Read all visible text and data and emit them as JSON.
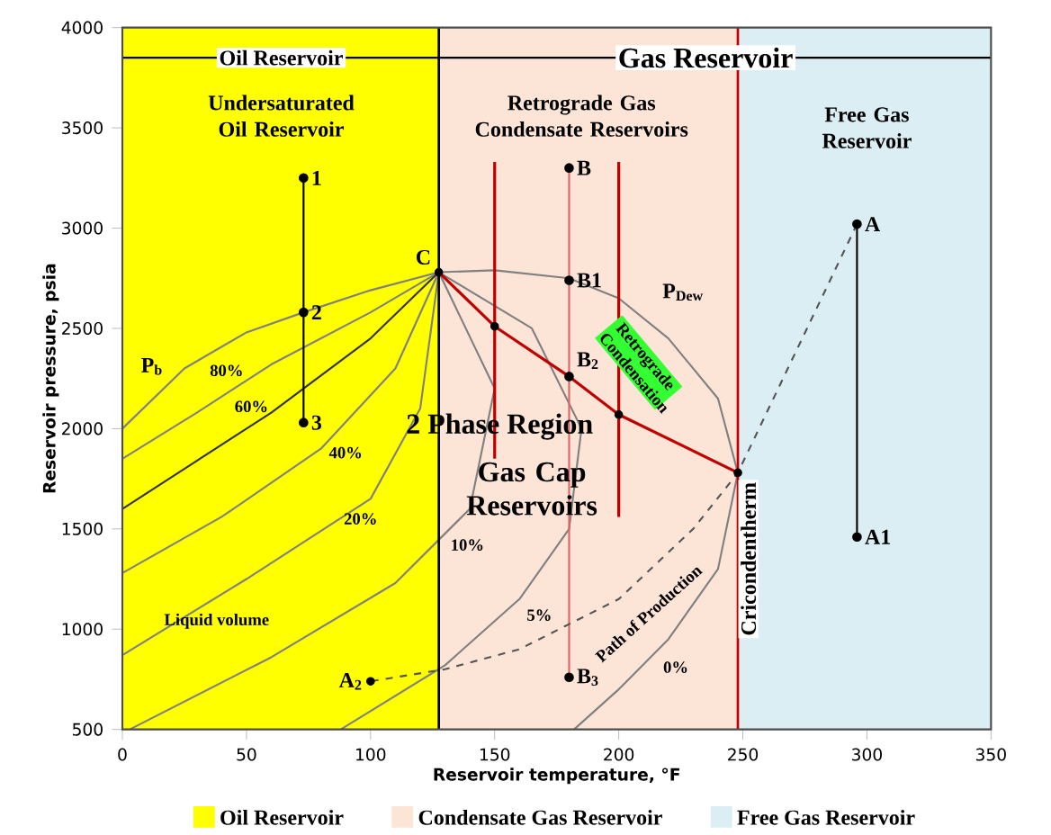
{
  "chart_data": {
    "type": "line",
    "xlabel": "Reservoir temperature, °F",
    "ylabel": "Reservoir pressure, psia",
    "xlim": [
      0,
      350
    ],
    "ylim": [
      500,
      4000
    ],
    "xticks": [
      0,
      50,
      100,
      150,
      200,
      250,
      300,
      350
    ],
    "yticks": [
      500,
      1000,
      1500,
      2000,
      2500,
      3000,
      3500,
      4000
    ],
    "legend": "bottom",
    "bands": [
      {
        "axis": "x",
        "from": 0,
        "to": 127.5,
        "label": "Oil Reservoir",
        "color": "#ffff00"
      },
      {
        "axis": "x",
        "from": 127.5,
        "to": 248,
        "label": "Condensate Gas Reservoir",
        "color": "#fce4d6"
      },
      {
        "axis": "x",
        "from": 248,
        "to": 350,
        "label": "Free Gas Reservoir",
        "color": "#daeef3"
      }
    ],
    "ref_lines": [
      {
        "axis": "x",
        "value": 127.5,
        "color": "#000000"
      },
      {
        "axis": "x",
        "value": 248,
        "label": "Cricondentherm",
        "color": "#c00000"
      }
    ],
    "series": [
      {
        "color": "#808080",
        "x": [
          0,
          25,
          50,
          73,
          100,
          127.5
        ],
        "values": [
          2000,
          2300,
          2480,
          2580,
          2690,
          2780
        ]
      },
      {
        "color": "#808080",
        "x": [
          182,
          200,
          220,
          240,
          248,
          240,
          220,
          200,
          180,
          150,
          127.5
        ],
        "values": [
          500,
          700,
          950,
          1300,
          1780,
          2150,
          2450,
          2650,
          2750,
          2790,
          2780
        ]
      },
      {
        "color": "#808080",
        "x": [
          0,
          30,
          60,
          100,
          127.5
        ],
        "values": [
          1850,
          2080,
          2320,
          2580,
          2780
        ]
      },
      {
        "color": "#333333",
        "x": [
          0,
          30,
          60,
          100,
          127.5
        ],
        "values": [
          1600,
          1840,
          2080,
          2450,
          2780
        ]
      },
      {
        "color": "#808080",
        "x": [
          0,
          40,
          80,
          110,
          127.5
        ],
        "values": [
          1280,
          1560,
          1900,
          2300,
          2780
        ]
      },
      {
        "color": "#808080",
        "x": [
          0,
          50,
          100,
          120,
          127.5
        ],
        "values": [
          870,
          1250,
          1650,
          2100,
          2780
        ]
      },
      {
        "color": "#808080",
        "x": [
          3,
          60,
          110,
          140,
          150,
          127.5
        ],
        "values": [
          500,
          860,
          1230,
          1600,
          2200,
          2780
        ]
      },
      {
        "color": "#808080",
        "x": [
          88,
          130,
          160,
          180,
          185,
          165,
          127.5
        ],
        "values": [
          500,
          820,
          1150,
          1500,
          2000,
          2500,
          2780
        ]
      },
      {
        "color": "#c00000",
        "x": [
          127.5,
          150,
          180,
          200,
          248
        ],
        "values": [
          2780,
          2510,
          2260,
          2070,
          1780
        ]
      },
      {
        "type": "scatter",
        "color": "#000000",
        "marker": "circle",
        "x": [
          127.5,
          150,
          200,
          248,
          100
        ],
        "values": [
          2780,
          2510,
          2070,
          1780,
          740
        ]
      },
      {
        "color": "#000000",
        "marker": "circle",
        "x": [
          73,
          73,
          73
        ],
        "values": [
          3250,
          2580,
          2030
        ]
      },
      {
        "color": "#e06666",
        "marker": "circle",
        "x": [
          180,
          180,
          180,
          180
        ],
        "values": [
          3300,
          2740,
          2260,
          760
        ]
      },
      {
        "color": "#c00000",
        "x": [
          150,
          150
        ],
        "values": [
          3330,
          1850
        ]
      },
      {
        "color": "#c00000",
        "x": [
          200,
          200
        ],
        "values": [
          3330,
          1560
        ]
      },
      {
        "color": "#000000",
        "marker": "circle",
        "x": [
          296,
          296
        ],
        "values": [
          3020,
          1460
        ]
      },
      {
        "color": "#555555",
        "line_style": "dashed",
        "x": [
          296,
          248,
          230,
          200,
          160,
          130,
          100
        ],
        "values": [
          3020,
          1780,
          1500,
          1150,
          900,
          800,
          740
        ]
      },
      {
        "color": "#000000",
        "x": [
          0,
          127.5,
          350
        ],
        "values": [
          3850,
          3850,
          3850
        ]
      }
    ],
    "annotations": [
      "Oil Reservoir",
      "Gas Reservoir",
      "Undersaturated Oil Reservoir",
      "Retrograde Gas Condensate Reservoirs",
      "Free Gas Reservoir",
      {
        "text": "C",
        "x": 127.5,
        "y": 2780
      },
      {
        "text": "1",
        "x": 73,
        "y": 3250
      },
      {
        "text": "2",
        "x": 73,
        "y": 2580
      },
      {
        "text": "3",
        "x": 73,
        "y": 2030
      },
      {
        "text": "B",
        "x": 180,
        "y": 3300
      },
      {
        "text": "B1",
        "x": 180,
        "y": 2740
      },
      {
        "text": "B$_{2}$",
        "x": 180,
        "y": 2260
      },
      {
        "text": "B$_{3}$",
        "x": 180,
        "y": 760
      },
      {
        "text": "A",
        "x": 296,
        "y": 3020
      },
      {
        "text": "A1",
        "x": 296,
        "y": 1460
      },
      {
        "text": "A$_{2}$",
        "x": 100,
        "y": 740
      },
      "2 Phase Region",
      "Gas Cap Reservoirs",
      "Retrograde Condensation",
      "P$_{b}$",
      "P$_{Dew}$",
      "Liquid volume",
      "80%",
      "60%",
      "40%",
      "20%",
      "10%",
      "5%",
      "0%",
      "Path of Production"
    ]
  }
}
